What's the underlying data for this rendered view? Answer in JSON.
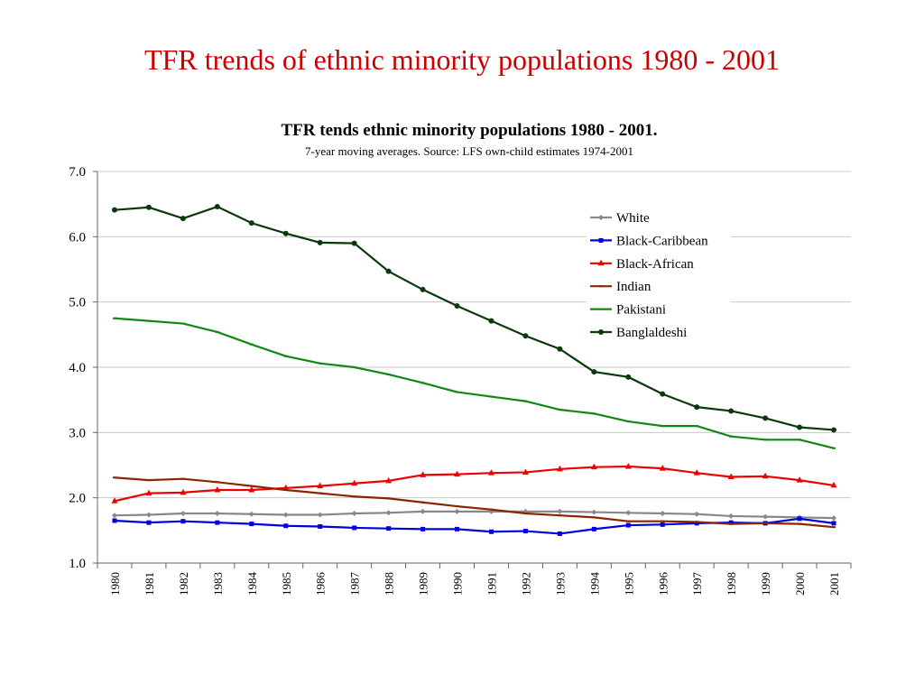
{
  "slide_title": "TFR trends of ethnic minority populations 1980 - 2001",
  "colors": {
    "slide_title": "#cc0000",
    "White": "#888888",
    "Black-Caribbean": "#0000dd",
    "Black-African": "#ee0000",
    "Indian": "#8b2500",
    "Pakistani": "#118811",
    "Banglaldeshi": "#0a3a0a"
  },
  "chart_data": {
    "type": "line",
    "title": "TFR tends ethnic minority populations 1980 - 2001.",
    "subtitle": "7-year moving averages. Source: LFS own-child estimates 1974-2001",
    "xlabel": "",
    "ylabel": "",
    "ylim": [
      1.0,
      7.0
    ],
    "yticks": [
      "1.0",
      "2.0",
      "3.0",
      "4.0",
      "5.0",
      "6.0",
      "7.0"
    ],
    "grid": true,
    "legend_position": "top-right",
    "x": [
      "1980",
      "1981",
      "1982",
      "1983",
      "1984",
      "1985",
      "1986",
      "1987",
      "1988",
      "1989",
      "1990",
      "1991",
      "1992",
      "1993",
      "1994",
      "1995",
      "1996",
      "1997",
      "1998",
      "1999",
      "2000",
      "2001"
    ],
    "series": [
      {
        "name": "White",
        "marker": "diamond",
        "values": [
          1.73,
          1.74,
          1.76,
          1.76,
          1.75,
          1.74,
          1.74,
          1.76,
          1.77,
          1.79,
          1.79,
          1.79,
          1.79,
          1.79,
          1.78,
          1.77,
          1.76,
          1.75,
          1.72,
          1.71,
          1.7,
          1.69
        ]
      },
      {
        "name": "Black-Caribbean",
        "marker": "square",
        "values": [
          1.65,
          1.62,
          1.64,
          1.62,
          1.6,
          1.57,
          1.56,
          1.54,
          1.53,
          1.52,
          1.52,
          1.48,
          1.49,
          1.45,
          1.52,
          1.58,
          1.59,
          1.61,
          1.62,
          1.61,
          1.68,
          1.61
        ]
      },
      {
        "name": "Black-African",
        "marker": "triangle",
        "values": [
          1.95,
          2.07,
          2.08,
          2.12,
          2.12,
          2.15,
          2.18,
          2.22,
          2.26,
          2.35,
          2.36,
          2.38,
          2.39,
          2.44,
          2.47,
          2.48,
          2.45,
          2.38,
          2.32,
          2.33,
          2.27,
          2.19
        ]
      },
      {
        "name": "Indian",
        "marker": "dash",
        "values": [
          2.31,
          2.27,
          2.29,
          2.24,
          2.18,
          2.12,
          2.07,
          2.02,
          1.99,
          1.93,
          1.87,
          1.82,
          1.76,
          1.73,
          1.7,
          1.64,
          1.64,
          1.63,
          1.6,
          1.61,
          1.6,
          1.55
        ]
      },
      {
        "name": "Pakistani",
        "marker": "dash",
        "values": [
          4.75,
          4.71,
          4.67,
          4.54,
          4.35,
          4.17,
          4.06,
          4.0,
          3.89,
          3.76,
          3.62,
          3.55,
          3.48,
          3.35,
          3.29,
          3.17,
          3.1,
          3.1,
          2.94,
          2.89,
          2.89,
          2.76
        ]
      },
      {
        "name": "Banglaldeshi",
        "marker": "circle",
        "values": [
          6.41,
          6.45,
          6.28,
          6.46,
          6.21,
          6.05,
          5.91,
          5.9,
          5.47,
          5.19,
          4.94,
          4.71,
          4.48,
          4.28,
          3.93,
          3.85,
          3.59,
          3.39,
          3.33,
          3.22,
          3.08,
          3.04
        ]
      }
    ]
  }
}
